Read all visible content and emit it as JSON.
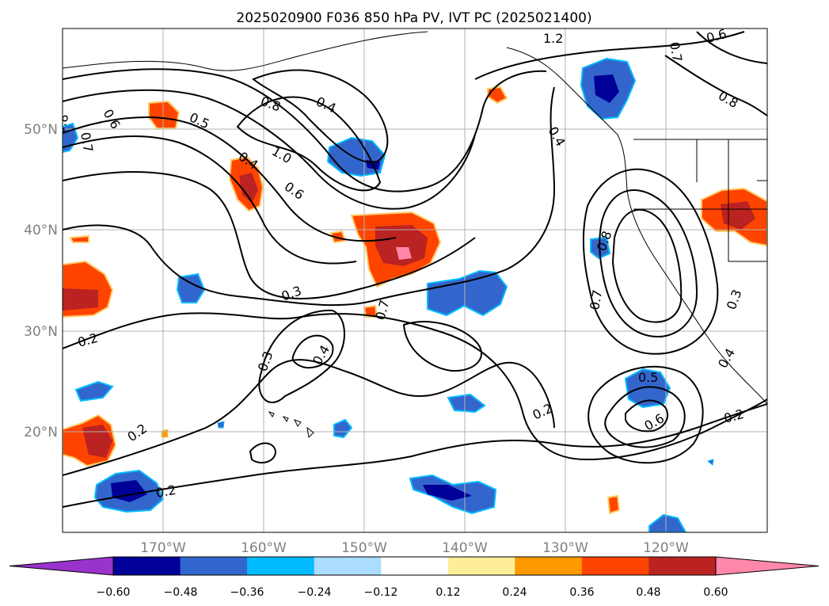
{
  "title": "2025020900 F036 850 hPa PV, IVT PC (2025021400)",
  "lat_labels": [
    "50°N",
    "40°N",
    "30°N",
    "20°N"
  ],
  "lon_labels": [
    "170°W",
    "160°W",
    "150°W",
    "140°W",
    "130°W",
    "120°W"
  ],
  "colorbar": {
    "ticks": [
      "−0.60",
      "−0.48",
      "−0.36",
      "−0.24",
      "−0.12",
      "0.12",
      "0.24",
      "0.36",
      "0.48",
      "0.60"
    ],
    "colors": [
      "#9933cc",
      "#000099",
      "#3366cc",
      "#00bbff",
      "#aaddff",
      "#ffffff",
      "#ffee99",
      "#ff9900",
      "#ff4400",
      "#bb2222",
      "#ff88aa"
    ]
  },
  "contour_labels": [
    "0.8",
    "0.4",
    "1.0",
    "0.5",
    "0.4",
    "0.6",
    "0.8",
    "0.3",
    "0.7",
    "0.2",
    "0.3",
    "0.4",
    "0.2",
    "0.2",
    "0.2",
    "0.5",
    "0.6",
    "0.2",
    "0.8",
    "0.4",
    "1.2",
    "0.7",
    "0.6",
    "0.8",
    "0.7",
    "0.6",
    "0.3",
    "0.4",
    "0.7"
  ]
}
